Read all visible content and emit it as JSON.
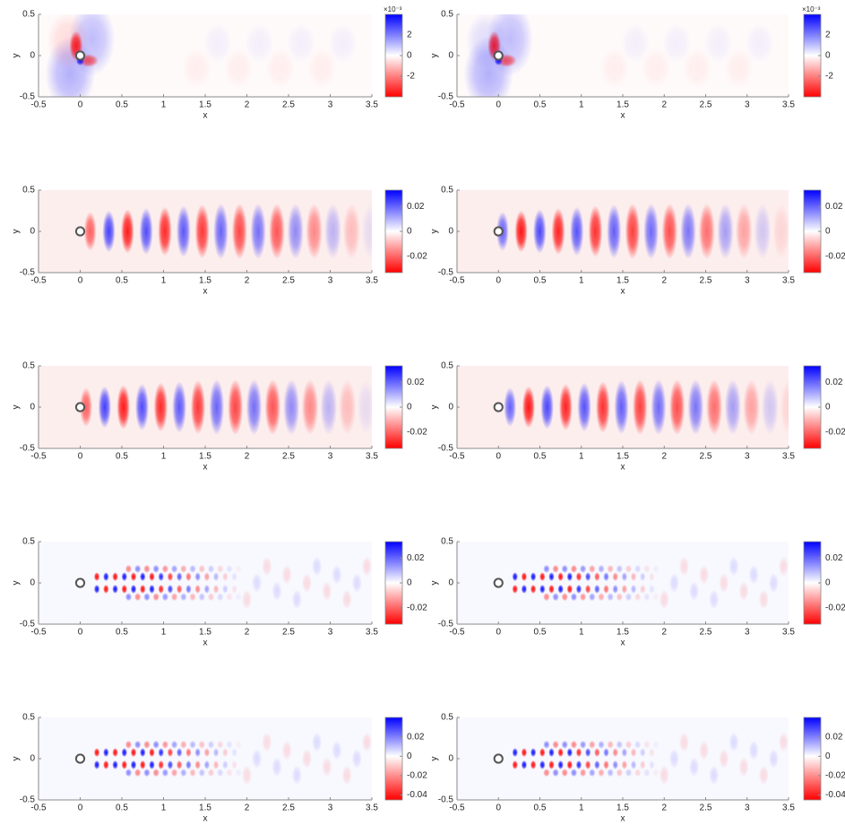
{
  "chart_data": [
    {
      "type": "heatmap",
      "xlabel": "x",
      "ylabel": "y",
      "xlim": [
        -0.5,
        3.5
      ],
      "ylim": [
        -0.5,
        0.5
      ],
      "xticks": [
        -0.5,
        0,
        0.5,
        1,
        1.5,
        2,
        2.5,
        3,
        3.5
      ],
      "yticks": [
        -0.5,
        0,
        0.5
      ],
      "clim": [
        -4,
        4
      ],
      "cticks": [
        -2,
        0,
        2
      ],
      "colorbar_exponent": "×10⁻³",
      "colormap": [
        "#ff0000",
        "#ffffff",
        "#0000ff"
      ]
    },
    {
      "type": "heatmap",
      "xlabel": "x",
      "ylabel": "y",
      "xlim": [
        -0.5,
        3.5
      ],
      "ylim": [
        -0.5,
        0.5
      ],
      "xticks": [
        -0.5,
        0,
        0.5,
        1,
        1.5,
        2,
        2.5,
        3,
        3.5
      ],
      "yticks": [
        -0.5,
        0,
        0.5
      ],
      "clim": [
        -4,
        4
      ],
      "cticks": [
        -2,
        0,
        2
      ],
      "colorbar_exponent": "×10⁻³",
      "colormap": [
        "#ff0000",
        "#ffffff",
        "#0000ff"
      ]
    },
    {
      "type": "heatmap",
      "xlabel": "x",
      "ylabel": "y",
      "xlim": [
        -0.5,
        3.5
      ],
      "ylim": [
        -0.5,
        0.5
      ],
      "xticks": [
        -0.5,
        0,
        0.5,
        1,
        1.5,
        2,
        2.5,
        3,
        3.5
      ],
      "yticks": [
        -0.5,
        0,
        0.5
      ],
      "clim": [
        -0.033,
        0.033
      ],
      "cticks": [
        -0.02,
        0,
        0.02
      ],
      "colormap": [
        "#ff0000",
        "#ffffff",
        "#0000ff"
      ]
    },
    {
      "type": "heatmap",
      "xlabel": "x",
      "ylabel": "y",
      "xlim": [
        -0.5,
        3.5
      ],
      "ylim": [
        -0.5,
        0.5
      ],
      "xticks": [
        -0.5,
        0,
        0.5,
        1,
        1.5,
        2,
        2.5,
        3,
        3.5
      ],
      "yticks": [
        -0.5,
        0,
        0.5
      ],
      "clim": [
        -0.033,
        0.033
      ],
      "cticks": [
        -0.02,
        0,
        0.02
      ],
      "colormap": [
        "#ff0000",
        "#ffffff",
        "#0000ff"
      ]
    },
    {
      "type": "heatmap",
      "xlabel": "x",
      "ylabel": "y",
      "xlim": [
        -0.5,
        3.5
      ],
      "ylim": [
        -0.5,
        0.5
      ],
      "xticks": [
        -0.5,
        0,
        0.5,
        1,
        1.5,
        2,
        2.5,
        3,
        3.5
      ],
      "yticks": [
        -0.5,
        0,
        0.5
      ],
      "clim": [
        -0.033,
        0.033
      ],
      "cticks": [
        -0.02,
        0,
        0.02
      ],
      "colormap": [
        "#ff0000",
        "#ffffff",
        "#0000ff"
      ]
    },
    {
      "type": "heatmap",
      "xlabel": "x",
      "ylabel": "y",
      "xlim": [
        -0.5,
        3.5
      ],
      "ylim": [
        -0.5,
        0.5
      ],
      "xticks": [
        -0.5,
        0,
        0.5,
        1,
        1.5,
        2,
        2.5,
        3,
        3.5
      ],
      "yticks": [
        -0.5,
        0,
        0.5
      ],
      "clim": [
        -0.033,
        0.033
      ],
      "cticks": [
        -0.02,
        0,
        0.02
      ],
      "colormap": [
        "#ff0000",
        "#ffffff",
        "#0000ff"
      ]
    },
    {
      "type": "heatmap",
      "xlabel": "x",
      "ylabel": "y",
      "xlim": [
        -0.5,
        3.5
      ],
      "ylim": [
        -0.5,
        0.5
      ],
      "xticks": [
        -0.5,
        0,
        0.5,
        1,
        1.5,
        2,
        2.5,
        3,
        3.5
      ],
      "yticks": [
        -0.5,
        0,
        0.5
      ],
      "clim": [
        -0.033,
        0.033
      ],
      "cticks": [
        -0.02,
        0,
        0.02
      ],
      "colormap": [
        "#ff0000",
        "#ffffff",
        "#0000ff"
      ]
    },
    {
      "type": "heatmap",
      "xlabel": "x",
      "ylabel": "y",
      "xlim": [
        -0.5,
        3.5
      ],
      "ylim": [
        -0.5,
        0.5
      ],
      "xticks": [
        -0.5,
        0,
        0.5,
        1,
        1.5,
        2,
        2.5,
        3,
        3.5
      ],
      "yticks": [
        -0.5,
        0,
        0.5
      ],
      "clim": [
        -0.033,
        0.033
      ],
      "cticks": [
        -0.02,
        0,
        0.02
      ],
      "colormap": [
        "#ff0000",
        "#ffffff",
        "#0000ff"
      ]
    },
    {
      "type": "heatmap",
      "xlabel": "x",
      "ylabel": "y",
      "xlim": [
        -0.5,
        3.5
      ],
      "ylim": [
        -0.5,
        0.5
      ],
      "xticks": [
        -0.5,
        0,
        0.5,
        1,
        1.5,
        2,
        2.5,
        3,
        3.5
      ],
      "yticks": [
        -0.5,
        0,
        0.5
      ],
      "clim": [
        -0.045,
        0.04
      ],
      "cticks": [
        -0.04,
        -0.02,
        0,
        0.02
      ],
      "colormap": [
        "#ff0000",
        "#ffffff",
        "#0000ff"
      ]
    },
    {
      "type": "heatmap",
      "xlabel": "x",
      "ylabel": "y",
      "xlim": [
        -0.5,
        3.5
      ],
      "ylim": [
        -0.5,
        0.5
      ],
      "xticks": [
        -0.5,
        0,
        0.5,
        1,
        1.5,
        2,
        2.5,
        3,
        3.5
      ],
      "yticks": [
        -0.5,
        0,
        0.5
      ],
      "clim": [
        -0.045,
        0.04
      ],
      "cticks": [
        -0.04,
        -0.02,
        0,
        0.02
      ],
      "colormap": [
        "#ff0000",
        "#ffffff",
        "#0000ff"
      ]
    }
  ]
}
